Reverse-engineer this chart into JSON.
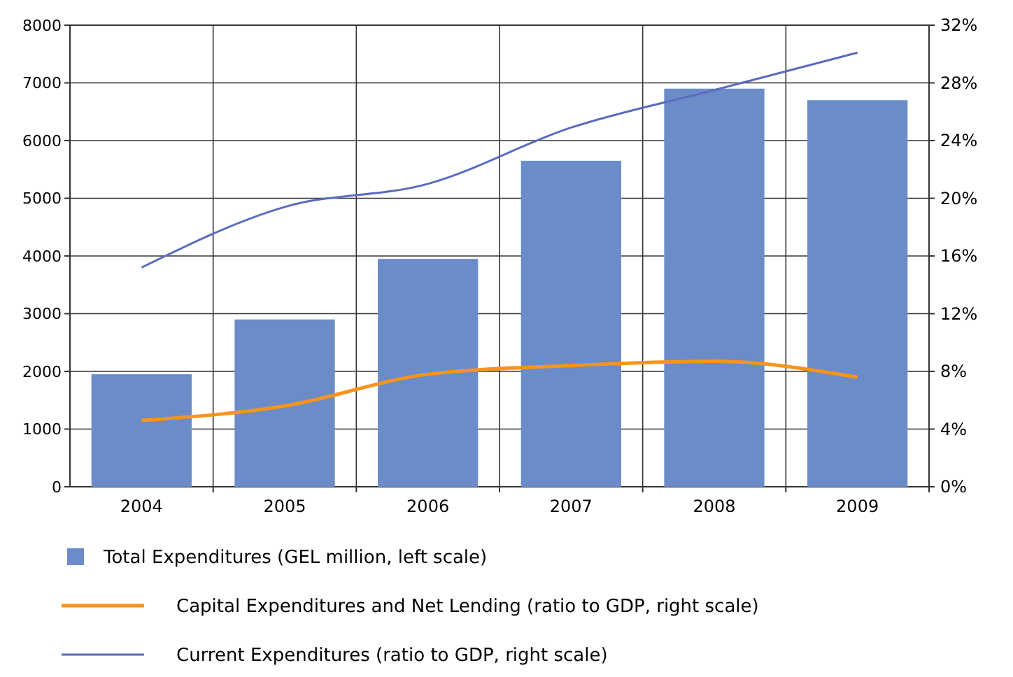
{
  "chart_data": {
    "type": "bar",
    "categories": [
      "2004",
      "2005",
      "2006",
      "2007",
      "2008",
      "2009"
    ],
    "series": [
      {
        "name": "Total Expenditures (GEL million, left scale)",
        "color": "#6b8cc8",
        "values": [
          1950,
          2900,
          3950,
          5650,
          6900,
          6700
        ]
      },
      {
        "name": "Capital Expenditures and Net Lending (ratio to GDP, right scale)",
        "type": "line",
        "axis": "y2",
        "color": "#f7941d",
        "values": [
          4.6,
          5.6,
          7.8,
          8.4,
          8.7,
          7.6
        ]
      },
      {
        "name": "Current Expenditures (ratio to GDP, right scale)",
        "type": "line",
        "axis": "y2",
        "color": "#5b6bbf",
        "values": [
          15.2,
          19.4,
          21.0,
          24.9,
          27.5,
          30.1
        ]
      }
    ],
    "ylim": [
      0,
      8000
    ],
    "yticks": [
      0,
      1000,
      2000,
      3000,
      4000,
      5000,
      6000,
      7000,
      8000
    ],
    "y2lim": [
      0,
      32
    ],
    "y2ticks": [
      {
        "value": 0,
        "label": "0%"
      },
      {
        "value": 4,
        "label": "4%"
      },
      {
        "value": 8,
        "label": "8%"
      },
      {
        "value": 12,
        "label": "12%"
      },
      {
        "value": 16,
        "label": "16%"
      },
      {
        "value": 20,
        "label": "20%"
      },
      {
        "value": 24,
        "label": "24%"
      },
      {
        "value": 28,
        "label": "28%"
      },
      {
        "value": 32,
        "label": "32%"
      }
    ],
    "grid": true,
    "legend": "bottom",
    "marker": "none"
  }
}
